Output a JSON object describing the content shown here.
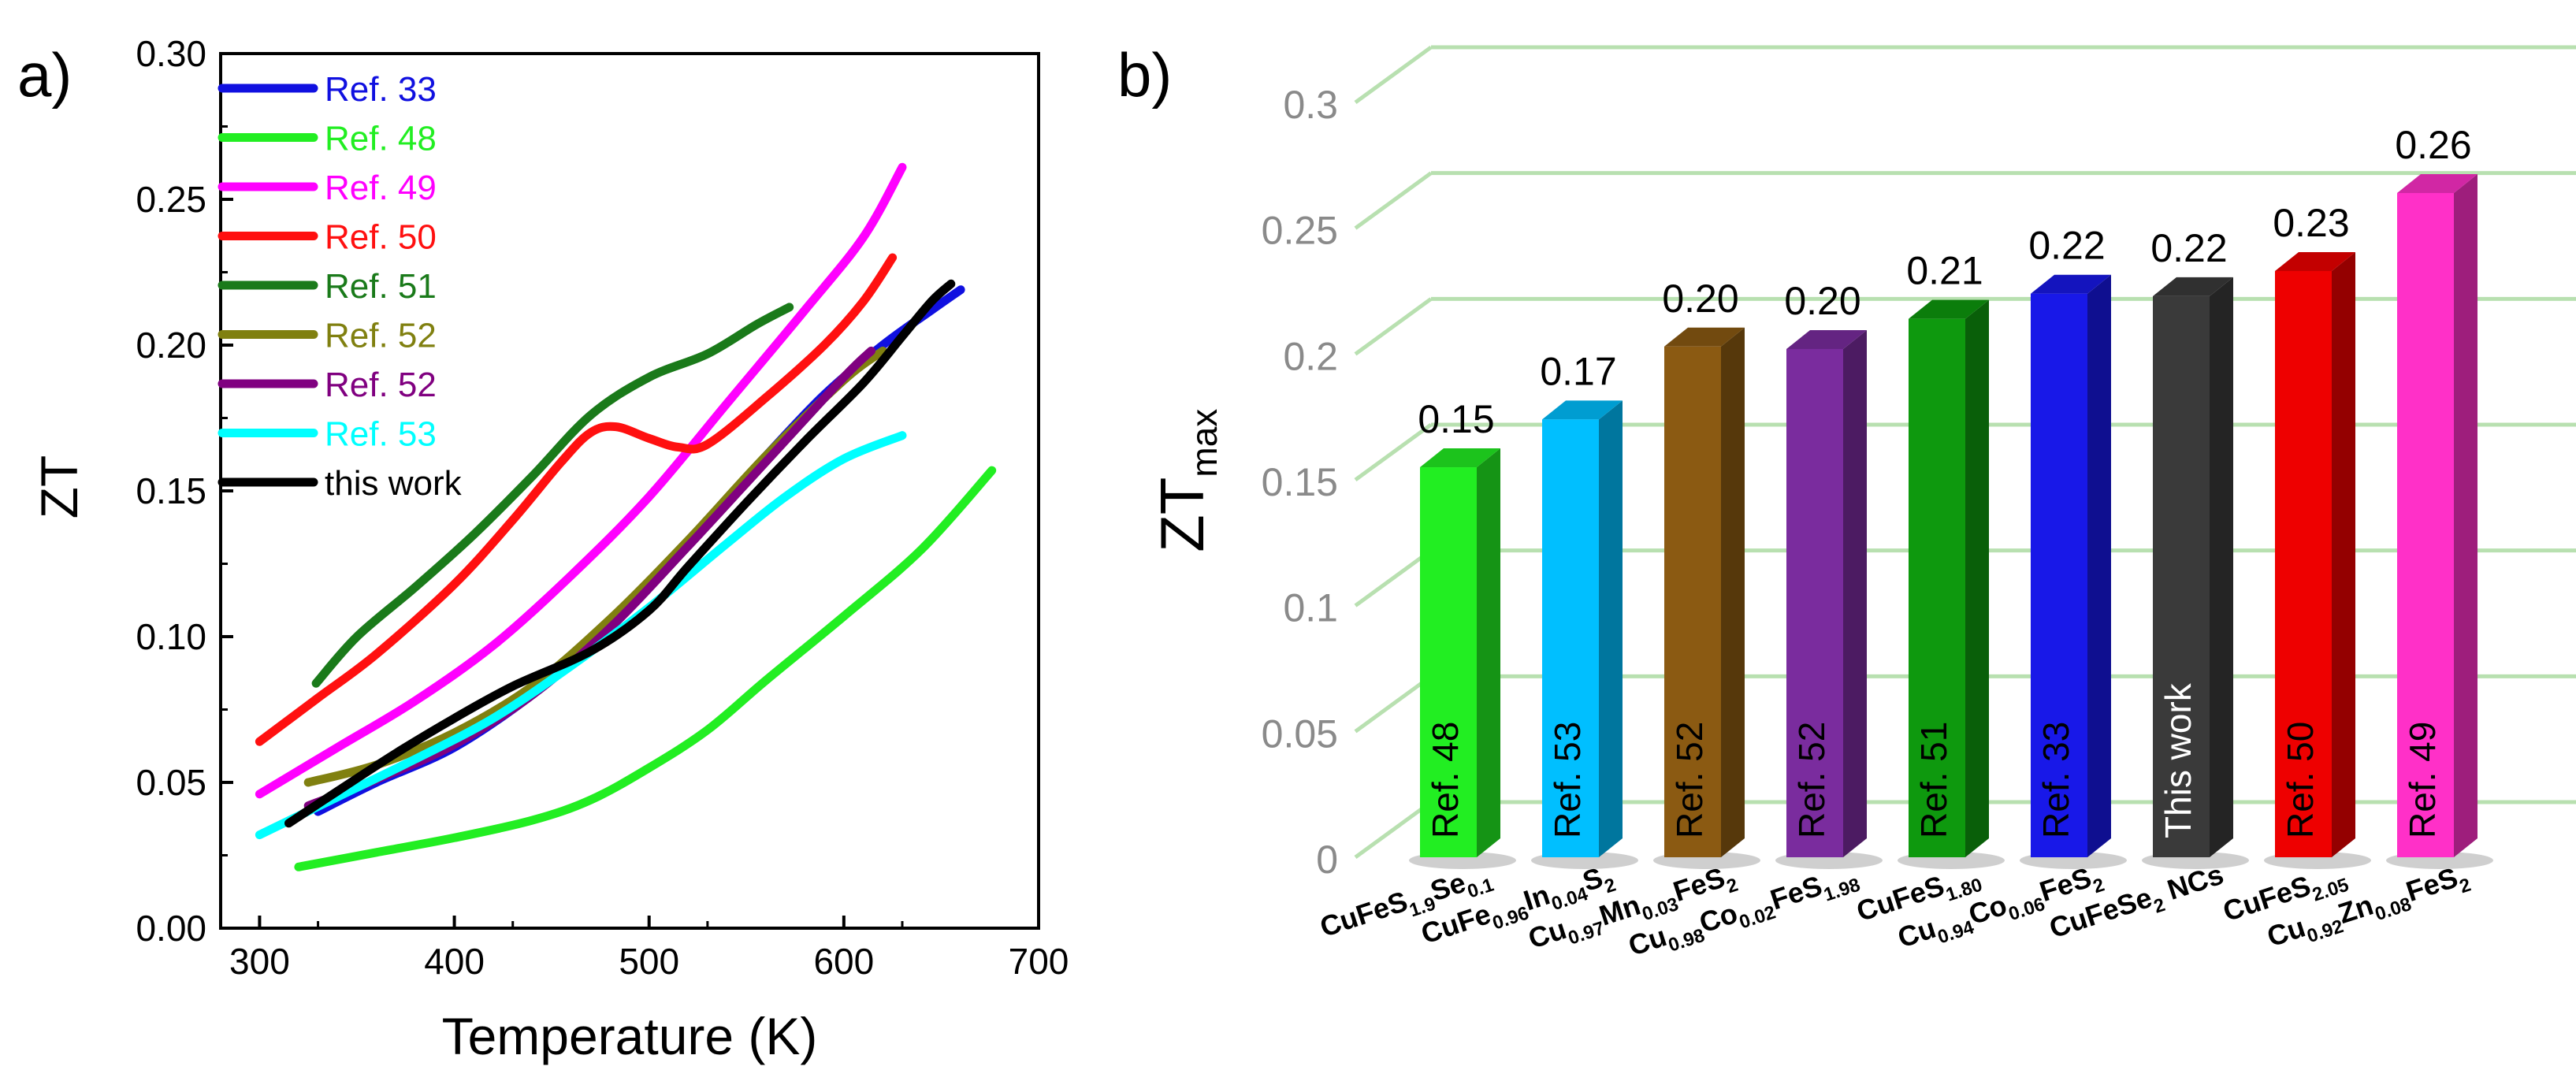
{
  "panels": {
    "a_label": "a)",
    "b_label": "b)"
  },
  "chart_data": [
    {
      "type": "line",
      "panel": "a",
      "title": "",
      "xlabel": "Temperature (K)",
      "ylabel": "ZT",
      "xlim": [
        280,
        700
      ],
      "ylim": [
        0.0,
        0.3
      ],
      "xticks": [
        300,
        400,
        500,
        600,
        700
      ],
      "yticks": [
        "0.00",
        "0.05",
        "0.10",
        "0.15",
        "0.20",
        "0.25",
        "0.30"
      ],
      "legend_position": "top-left",
      "series": [
        {
          "name": "Ref. 33",
          "color": "#1010e0",
          "points": [
            [
              330,
              0.04
            ],
            [
              360,
              0.05
            ],
            [
              400,
              0.062
            ],
            [
              440,
              0.08
            ],
            [
              470,
              0.097
            ],
            [
              500,
              0.118
            ],
            [
              530,
              0.14
            ],
            [
              560,
              0.162
            ],
            [
              590,
              0.183
            ],
            [
              620,
              0.2
            ],
            [
              645,
              0.212
            ],
            [
              660,
              0.219
            ]
          ]
        },
        {
          "name": "Ref. 48",
          "color": "#22ee22",
          "points": [
            [
              320,
              0.021
            ],
            [
              360,
              0.026
            ],
            [
              400,
              0.031
            ],
            [
              440,
              0.037
            ],
            [
              470,
              0.044
            ],
            [
              500,
              0.055
            ],
            [
              530,
              0.068
            ],
            [
              560,
              0.085
            ],
            [
              600,
              0.107
            ],
            [
              640,
              0.13
            ],
            [
              676,
              0.157
            ]
          ]
        },
        {
          "name": "Ref. 49",
          "color": "#ff00ff",
          "points": [
            [
              300,
              0.046
            ],
            [
              340,
              0.062
            ],
            [
              380,
              0.078
            ],
            [
              420,
              0.097
            ],
            [
              460,
              0.121
            ],
            [
              500,
              0.148
            ],
            [
              540,
              0.18
            ],
            [
              580,
              0.212
            ],
            [
              610,
              0.237
            ],
            [
              630,
              0.261
            ]
          ]
        },
        {
          "name": "Ref. 50",
          "color": "#ff1010",
          "points": [
            [
              300,
              0.064
            ],
            [
              330,
              0.079
            ],
            [
              360,
              0.094
            ],
            [
              400,
              0.118
            ],
            [
              430,
              0.14
            ],
            [
              455,
              0.16
            ],
            [
              470,
              0.17
            ],
            [
              483,
              0.172
            ],
            [
              500,
              0.168
            ],
            [
              515,
              0.165
            ],
            [
              530,
              0.166
            ],
            [
              560,
              0.182
            ],
            [
              590,
              0.2
            ],
            [
              610,
              0.215
            ],
            [
              625,
              0.23
            ]
          ]
        },
        {
          "name": "Ref. 51",
          "color": "#1a7a1a",
          "points": [
            [
              329,
              0.084
            ],
            [
              350,
              0.1
            ],
            [
              380,
              0.117
            ],
            [
              410,
              0.135
            ],
            [
              440,
              0.155
            ],
            [
              470,
              0.176
            ],
            [
              500,
              0.189
            ],
            [
              530,
              0.197
            ],
            [
              555,
              0.207
            ],
            [
              572,
              0.213
            ]
          ]
        },
        {
          "name": "Ref. 52",
          "color": "#808010",
          "points": [
            [
              325,
              0.05
            ],
            [
              360,
              0.056
            ],
            [
              400,
              0.067
            ],
            [
              440,
              0.083
            ],
            [
              480,
              0.106
            ],
            [
              520,
              0.133
            ],
            [
              560,
              0.162
            ],
            [
              600,
              0.188
            ],
            [
              620,
              0.198
            ]
          ]
        },
        {
          "name": "Ref. 52",
          "color": "#800080",
          "points": [
            [
              325,
              0.042
            ],
            [
              360,
              0.051
            ],
            [
              400,
              0.063
            ],
            [
              440,
              0.08
            ],
            [
              480,
              0.103
            ],
            [
              520,
              0.131
            ],
            [
              560,
              0.16
            ],
            [
              600,
              0.189
            ],
            [
              614,
              0.198
            ]
          ]
        },
        {
          "name": "Ref. 53",
          "color": "#00ffff",
          "points": [
            [
              300,
              0.032
            ],
            [
              340,
              0.045
            ],
            [
              380,
              0.058
            ],
            [
              420,
              0.072
            ],
            [
              460,
              0.09
            ],
            [
              500,
              0.11
            ],
            [
              540,
              0.132
            ],
            [
              570,
              0.148
            ],
            [
              600,
              0.161
            ],
            [
              630,
              0.169
            ]
          ]
        },
        {
          "name": "this work",
          "color": "#000000",
          "points": [
            [
              315,
              0.036
            ],
            [
              340,
              0.047
            ],
            [
              370,
              0.06
            ],
            [
              400,
              0.072
            ],
            [
              430,
              0.083
            ],
            [
              470,
              0.095
            ],
            [
              500,
              0.109
            ],
            [
              520,
              0.124
            ],
            [
              550,
              0.146
            ],
            [
              580,
              0.167
            ],
            [
              610,
              0.187
            ],
            [
              630,
              0.203
            ],
            [
              645,
              0.215
            ],
            [
              655,
              0.221
            ]
          ]
        }
      ]
    },
    {
      "type": "bar",
      "panel": "b",
      "title": "",
      "xlabel": "",
      "ylabel": {
        "main": "ZT",
        "sub": "max"
      },
      "ylim": [
        0,
        0.3
      ],
      "yticks": [
        "0",
        "0.05",
        "0.1",
        "0.15",
        "0.2",
        "0.25",
        "0.3"
      ],
      "grid": true,
      "bars": [
        {
          "value": 0.155,
          "value_label": "0.15",
          "bar_text": "Ref. 48",
          "color": "#22ee22",
          "category": [
            [
              "CuFeS",
              ""
            ],
            [
              "1.9",
              "sub"
            ],
            [
              "Se",
              ""
            ],
            [
              "0.1",
              "sub"
            ]
          ]
        },
        {
          "value": 0.174,
          "value_label": "0.17",
          "bar_text": "Ref. 53",
          "color": "#00bfff",
          "category": [
            [
              "CuFe",
              ""
            ],
            [
              "0.96",
              "sub"
            ],
            [
              "In",
              ""
            ],
            [
              "0.04",
              "sub"
            ],
            [
              "S",
              ""
            ],
            [
              "2",
              "sub"
            ]
          ]
        },
        {
          "value": 0.203,
          "value_label": "0.20",
          "bar_text": "Ref. 52",
          "color": "#8b5a12",
          "category": [
            [
              "Cu",
              ""
            ],
            [
              "0.97",
              "sub"
            ],
            [
              "Mn",
              ""
            ],
            [
              "0.03",
              "sub"
            ],
            [
              "FeS",
              ""
            ],
            [
              "2",
              "sub"
            ]
          ]
        },
        {
          "value": 0.202,
          "value_label": "0.20",
          "bar_text": "Ref. 52",
          "color": "#7a2c9e",
          "category": [
            [
              "Cu",
              ""
            ],
            [
              "0.98",
              "sub"
            ],
            [
              "Co",
              ""
            ],
            [
              "0.02",
              "sub"
            ],
            [
              "FeS",
              ""
            ],
            [
              "1.98",
              "sub"
            ]
          ]
        },
        {
          "value": 0.214,
          "value_label": "0.21",
          "bar_text": "Ref. 51",
          "color": "#0e990e",
          "category": [
            [
              "CuFeS",
              ""
            ],
            [
              "1.80",
              "sub"
            ]
          ]
        },
        {
          "value": 0.224,
          "value_label": "0.22",
          "bar_text": "Ref. 33",
          "color": "#1818e8",
          "category": [
            [
              "Cu",
              ""
            ],
            [
              "0.94",
              "sub"
            ],
            [
              "Co",
              ""
            ],
            [
              "0.06",
              "sub"
            ],
            [
              "FeS",
              ""
            ],
            [
              "2",
              "sub"
            ]
          ]
        },
        {
          "value": 0.223,
          "value_label": "0.22",
          "bar_text": "This work",
          "color": "#3a3a3a",
          "category": [
            [
              "CuFeSe",
              ""
            ],
            [
              "2",
              "sub"
            ],
            [
              " NCs",
              ""
            ]
          ]
        },
        {
          "value": 0.233,
          "value_label": "0.23",
          "bar_text": "Ref. 50",
          "color": "#ee0000",
          "category": [
            [
              "CuFeS",
              ""
            ],
            [
              "2.05",
              "sub"
            ]
          ]
        },
        {
          "value": 0.264,
          "value_label": "0.26",
          "bar_text": "Ref. 49",
          "color": "#ff30c8",
          "category": [
            [
              "Cu",
              ""
            ],
            [
              "0.92",
              "sub"
            ],
            [
              "Zn",
              ""
            ],
            [
              "0.08",
              "sub"
            ],
            [
              "FeS",
              ""
            ],
            [
              "2",
              "sub"
            ]
          ]
        }
      ]
    }
  ]
}
